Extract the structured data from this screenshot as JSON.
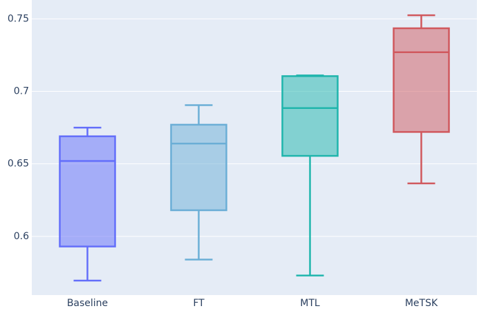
{
  "chart_data": {
    "type": "box",
    "title": "",
    "xlabel": "",
    "ylabel": "",
    "ylim": [
      0.5595,
      0.763
    ],
    "yticks": [
      0.6,
      0.65,
      0.7,
      0.75
    ],
    "ytick_labels": [
      "0.6",
      "0.65",
      "0.7",
      "0.75"
    ],
    "grid": true,
    "legend": "none",
    "plot_background": "#e5ecf6",
    "grid_color": "#ffffff",
    "tick_label_color": "#2a3f5f",
    "categories": [
      "Baseline",
      "FT",
      "MTL",
      "MeTSK"
    ],
    "boxes": [
      {
        "category": "Baseline",
        "min": 0.5695,
        "q1": 0.593,
        "median": 0.652,
        "q3": 0.669,
        "max": 0.675,
        "color": "#636efa"
      },
      {
        "category": "FT",
        "min": 0.584,
        "q1": 0.618,
        "median": 0.664,
        "q3": 0.677,
        "max": 0.6905,
        "color": "#6baed6"
      },
      {
        "category": "MTL",
        "min": 0.573,
        "q1": 0.6555,
        "median": 0.6885,
        "q3": 0.7105,
        "max": 0.711,
        "color": "#1fb5ac"
      },
      {
        "category": "MeTSK",
        "min": 0.6365,
        "q1": 0.672,
        "median": 0.727,
        "q3": 0.7435,
        "max": 0.7525,
        "color": "#d0585d"
      }
    ]
  }
}
